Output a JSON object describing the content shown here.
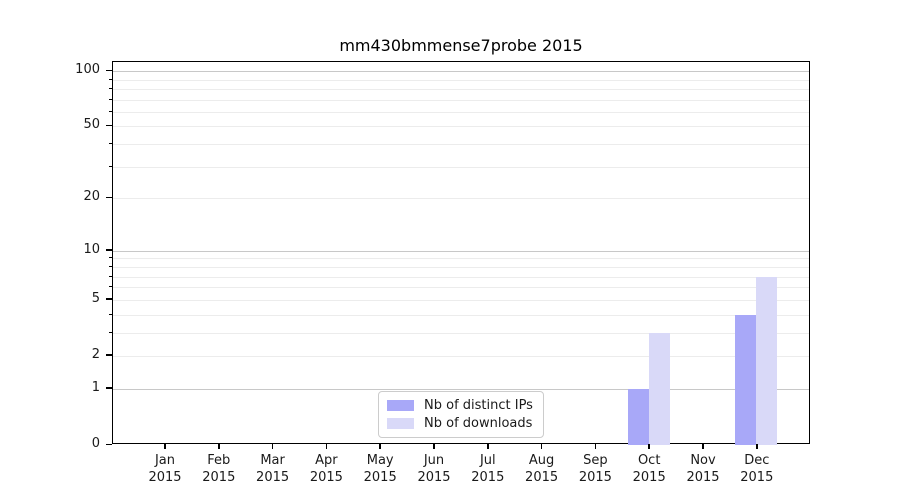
{
  "title": "mm430bmmense7probe 2015",
  "colors": {
    "ips_bar": "#a8a8f8",
    "downloads_bar": "#d9d9f8",
    "grid_major": "#c8c8c8",
    "grid_minor": "#ececec",
    "spine": "#000000"
  },
  "legend": {
    "items": [
      {
        "label": "Nb of distinct IPs",
        "color": "#a8a8f8"
      },
      {
        "label": "Nb of downloads",
        "color": "#d9d9f8"
      }
    ]
  },
  "chart_data": {
    "type": "bar",
    "title": "mm430bmmense7probe 2015",
    "categories": [
      "Jan 2015",
      "Feb 2015",
      "Mar 2015",
      "Apr 2015",
      "May 2015",
      "Jun 2015",
      "Jul 2015",
      "Aug 2015",
      "Sep 2015",
      "Oct 2015",
      "Nov 2015",
      "Dec 2015"
    ],
    "x_months": [
      "Jan",
      "Feb",
      "Mar",
      "Apr",
      "May",
      "Jun",
      "Jul",
      "Aug",
      "Sep",
      "Oct",
      "Nov",
      "Dec"
    ],
    "x_year": "2015",
    "series": [
      {
        "name": "Nb of distinct IPs",
        "color": "#a8a8f8",
        "values": [
          0,
          0,
          0,
          0,
          0,
          0,
          0,
          0,
          0,
          1,
          0,
          4
        ]
      },
      {
        "name": "Nb of downloads",
        "color": "#d9d9f8",
        "values": [
          0,
          0,
          0,
          0,
          0,
          0,
          0,
          0,
          0,
          3,
          0,
          7
        ]
      }
    ],
    "xlabel": "",
    "ylabel": "",
    "yscale": "log1p",
    "ylim": [
      0,
      112
    ],
    "y_ticks": [
      0,
      1,
      2,
      5,
      10,
      20,
      50,
      100
    ],
    "y_decade_ticks": [
      1,
      10,
      100
    ],
    "y_minor_ticks": [
      3,
      4,
      6,
      7,
      8,
      9,
      30,
      40,
      60,
      70,
      80,
      90
    ],
    "grid": true,
    "legend_position": "lower center"
  }
}
